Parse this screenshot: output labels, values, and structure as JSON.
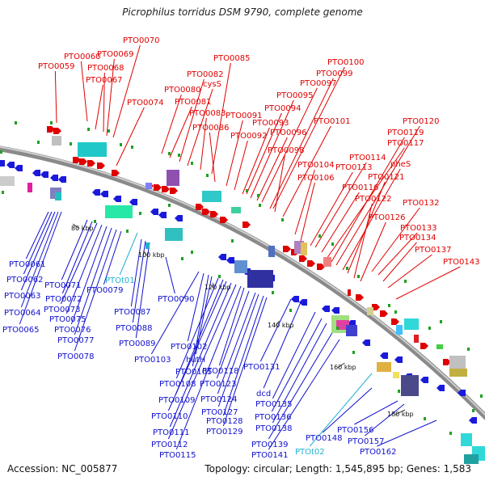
{
  "title": "Picrophilus torridus DSM 9790, complete genome",
  "accession": "Accession: NC_005877",
  "summary": "Topology: circular; Length: 1,545,895 bp; Genes: 1,583",
  "colors": {
    "forward_label": "#e00000",
    "reverse_label": "#1010d0",
    "rna_label": "#20b0d0",
    "backbone": "#888888"
  },
  "ticks": [
    "80 kbp",
    "100 kbp",
    "120 kbp",
    "140 kbp",
    "160 kbp",
    "180 kbp"
  ],
  "forward_genes": [
    "PTO0059",
    "PTO0060",
    "PTO0067",
    "PTO0068",
    "PTO0069",
    "PTO0070",
    "PTO0074",
    "PTO0080",
    "PTO0081",
    "PTO0082",
    "cysS",
    "PTO0083",
    "PTO0085",
    "PTO0086",
    "PTO0091",
    "PTO0092",
    "PTO0093",
    "PTO0094",
    "PTO0095",
    "PTO0096",
    "PTO0097",
    "PTO0098",
    "PTO0099",
    "PTO0100",
    "PTO0101",
    "PTO0104",
    "PTO0106",
    "PTO0113",
    "PTO0114",
    "PTO0116",
    "PTO0117",
    "PTO0119",
    "PTO0120",
    "pheS",
    "PTO0121",
    "PTO0122",
    "PTO0126",
    "PTO0132",
    "PTO0133",
    "PTO0134",
    "PTO0137",
    "PTO0143"
  ],
  "reverse_genes": [
    "PTO0061",
    "PTO0062",
    "PTO0063",
    "PTO0064",
    "PTO0065",
    "PTO0071",
    "PTO0072",
    "PTO0073",
    "PTO0075",
    "PTO0076",
    "PTO0077",
    "PTO0078",
    "PTO0079",
    "PTO0087",
    "PTO0088",
    "PTO0089",
    "PTO0090",
    "PTO0102",
    "PTO0103",
    "PTO0105",
    "hutH",
    "PTO0108",
    "PTO0109",
    "PTO0110",
    "PTO0111",
    "PTO0112",
    "PTO0115",
    "PTO0118",
    "PTO0123",
    "PTO0124",
    "PTO0127",
    "PTO0128",
    "PTO0129",
    "PTO0131",
    "dcd",
    "PTO0135",
    "PTO0136",
    "PTO0138",
    "PTO0139",
    "PTO0141",
    "PTO0148",
    "PTO0156",
    "PTO0157",
    "PTO0162"
  ],
  "rna_genes": [
    "PTOt01",
    "PTOt02"
  ]
}
